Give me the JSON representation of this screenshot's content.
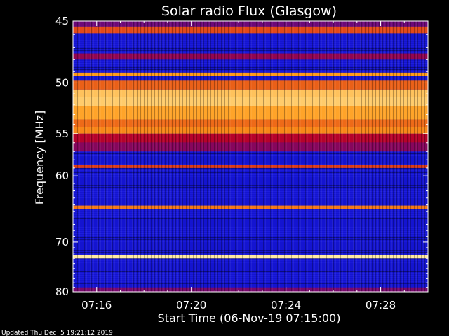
{
  "chart_data": {
    "type": "heatmap",
    "title": "Solar radio Flux (Glasgow)",
    "xlabel": "Start Time (06-Nov-19 07:15:00)",
    "ylabel_text": "Frequency",
    "ylabel_unit": "MHz",
    "x_range": [
      "07:15:00",
      "07:30:00"
    ],
    "x_ticks": [
      "07:16",
      "07:20",
      "07:24",
      "07:28"
    ],
    "x_tick_minutes": [
      1,
      5,
      9,
      13
    ],
    "y_range": [
      45,
      80
    ],
    "y_ticks": [
      "45",
      "50",
      "55",
      "60",
      "70",
      "80"
    ],
    "y_tick_values": [
      45,
      50,
      55,
      60,
      70,
      80
    ],
    "y_scale": "reciprocal",
    "colors": {
      "low": "#1010d8",
      "mid": "#c80018",
      "high": "#ff9a18",
      "peak": "#fff4b0"
    },
    "bands": [
      {
        "from": 45.0,
        "to": 45.4,
        "level": 0.25
      },
      {
        "from": 45.4,
        "to": 45.9,
        "level": 0.65
      },
      {
        "from": 47.5,
        "to": 48.0,
        "level": 0.35
      },
      {
        "from": 49.1,
        "to": 49.4,
        "level": 0.82
      },
      {
        "from": 49.8,
        "to": 50.6,
        "level": 0.7
      },
      {
        "from": 50.6,
        "to": 51.3,
        "level": 0.9
      },
      {
        "from": 51.3,
        "to": 52.2,
        "level": 0.92
      },
      {
        "from": 52.2,
        "to": 53.5,
        "level": 0.84
      },
      {
        "from": 53.5,
        "to": 54.3,
        "level": 0.72
      },
      {
        "from": 54.3,
        "to": 55.0,
        "level": 0.78
      },
      {
        "from": 55.0,
        "to": 56.0,
        "level": 0.45
      },
      {
        "from": 56.0,
        "to": 57.0,
        "level": 0.32
      },
      {
        "from": 58.6,
        "to": 59.0,
        "level": 0.62
      },
      {
        "from": 64.1,
        "to": 64.6,
        "level": 0.75
      },
      {
        "from": 72.3,
        "to": 73.0,
        "level": 0.98
      },
      {
        "from": 79.0,
        "to": 80.0,
        "level": 0.28
      }
    ],
    "footer": "Updated Thu Dec  5 19:21:12 2019"
  }
}
